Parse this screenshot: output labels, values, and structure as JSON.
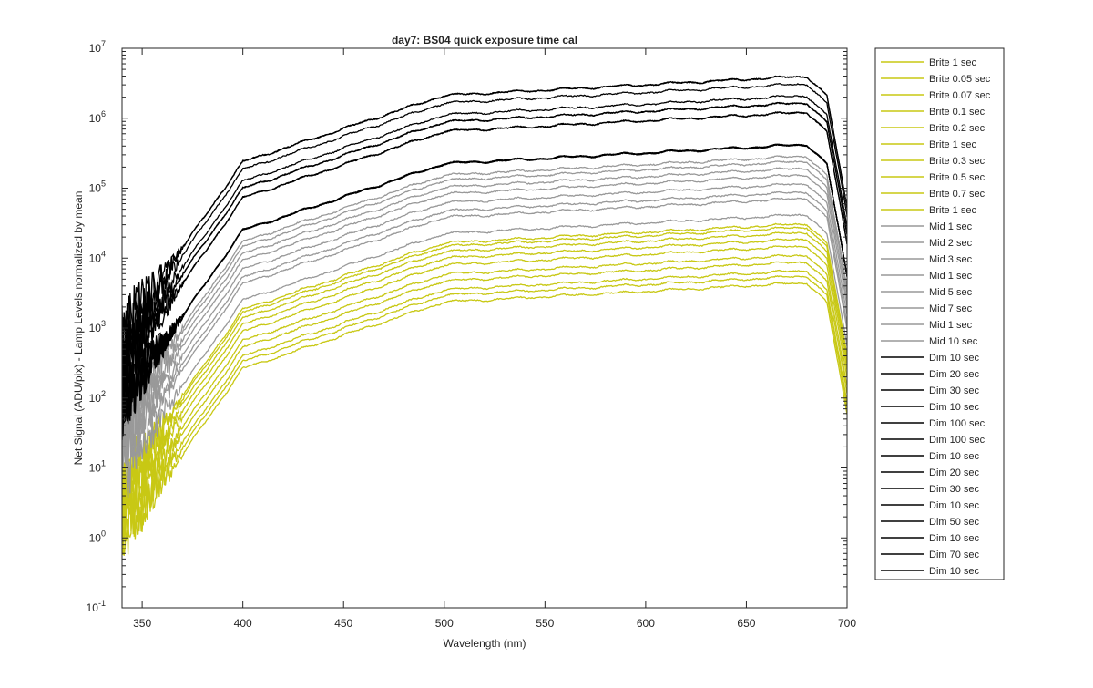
{
  "chart_data": {
    "type": "line",
    "title": "day7: BS04  quick exposure time cal",
    "xlabel": "Wavelength (nm)",
    "ylabel": "Net Signal (ADU/pix) - Lamp Levels normalized by mean",
    "xlim": [
      340,
      700
    ],
    "ylim": [
      0.1,
      10000000
    ],
    "yscale": "log",
    "grid": false,
    "legend_position": "outside-right",
    "x_ticks": [
      350,
      400,
      450,
      500,
      550,
      600,
      650,
      700
    ],
    "x_tick_labels": [
      "350",
      "400",
      "450",
      "500",
      "550",
      "600",
      "650",
      "700"
    ],
    "y_ticks": [
      0.1,
      1,
      10,
      100,
      1000,
      10000,
      100000,
      1000000,
      10000000
    ],
    "y_tick_mantissa": [
      "10",
      "10",
      "10",
      "10",
      "10",
      "10",
      "10",
      "10",
      "10"
    ],
    "y_tick_exponent": [
      "-1",
      "0",
      "1",
      "2",
      "3",
      "4",
      "5",
      "6",
      "7"
    ],
    "colors": {
      "brite": "#c8c814",
      "mid": "#999999",
      "dim": "#000000",
      "axis": "#262626"
    },
    "series": [
      {
        "name": "Brite 1 sec",
        "group": "brite",
        "level_at_650": 4000
      },
      {
        "name": "Brite 0.05 sec",
        "group": "brite",
        "level_at_650": 5000
      },
      {
        "name": "Brite 0.07 sec",
        "group": "brite",
        "level_at_650": 6000
      },
      {
        "name": "Brite 0.1 sec",
        "group": "brite",
        "level_at_650": 8000
      },
      {
        "name": "Brite 0.2 sec",
        "group": "brite",
        "level_at_650": 10000
      },
      {
        "name": "Brite 1 sec",
        "group": "brite",
        "level_at_650": 13500
      },
      {
        "name": "Brite 0.3 sec",
        "group": "brite",
        "level_at_650": 17000
      },
      {
        "name": "Brite 0.5 sec",
        "group": "brite",
        "level_at_650": 21000
      },
      {
        "name": "Brite 0.7 sec",
        "group": "brite",
        "level_at_650": 25000
      },
      {
        "name": "Brite 1 sec",
        "group": "brite",
        "level_at_650": 28000
      },
      {
        "name": "Mid 1 sec",
        "group": "mid",
        "level_at_650": 38000
      },
      {
        "name": "Mid 2 sec",
        "group": "mid",
        "level_at_650": 65000
      },
      {
        "name": "Mid 3 sec",
        "group": "mid",
        "level_at_650": 80000
      },
      {
        "name": "Mid 1 sec",
        "group": "mid",
        "level_at_650": 105000
      },
      {
        "name": "Mid 5 sec",
        "group": "mid",
        "level_at_650": 140000
      },
      {
        "name": "Mid 7 sec",
        "group": "mid",
        "level_at_650": 175000
      },
      {
        "name": "Mid 1 sec",
        "group": "mid",
        "level_at_650": 220000
      },
      {
        "name": "Mid 10 sec",
        "group": "mid",
        "level_at_650": 260000
      },
      {
        "name": "Dim 10 sec",
        "group": "dim",
        "level_at_650": 380000
      },
      {
        "name": "Dim 20 sec",
        "group": "dim",
        "level_at_650": 1100000
      },
      {
        "name": "Dim 30 sec",
        "group": "dim",
        "level_at_650": 1500000
      },
      {
        "name": "Dim 10 sec",
        "group": "dim",
        "level_at_650": 380000
      },
      {
        "name": "Dim 100 sec",
        "group": "dim",
        "level_at_650": 3600000
      },
      {
        "name": "Dim 100 sec",
        "group": "dim",
        "level_at_650": 3600000
      },
      {
        "name": "Dim 10 sec",
        "group": "dim",
        "level_at_650": 380000
      },
      {
        "name": "Dim 20 sec",
        "group": "dim",
        "level_at_650": 1100000
      },
      {
        "name": "Dim 30 sec",
        "group": "dim",
        "level_at_650": 1500000
      },
      {
        "name": "Dim 10 sec",
        "group": "dim",
        "level_at_650": 380000
      },
      {
        "name": "Dim 50 sec",
        "group": "dim",
        "level_at_650": 1900000
      },
      {
        "name": "Dim 10 sec",
        "group": "dim",
        "level_at_650": 380000
      },
      {
        "name": "Dim 70 sec",
        "group": "dim",
        "level_at_650": 2800000
      },
      {
        "name": "Dim 10 sec",
        "group": "dim",
        "level_at_650": 380000
      }
    ]
  }
}
